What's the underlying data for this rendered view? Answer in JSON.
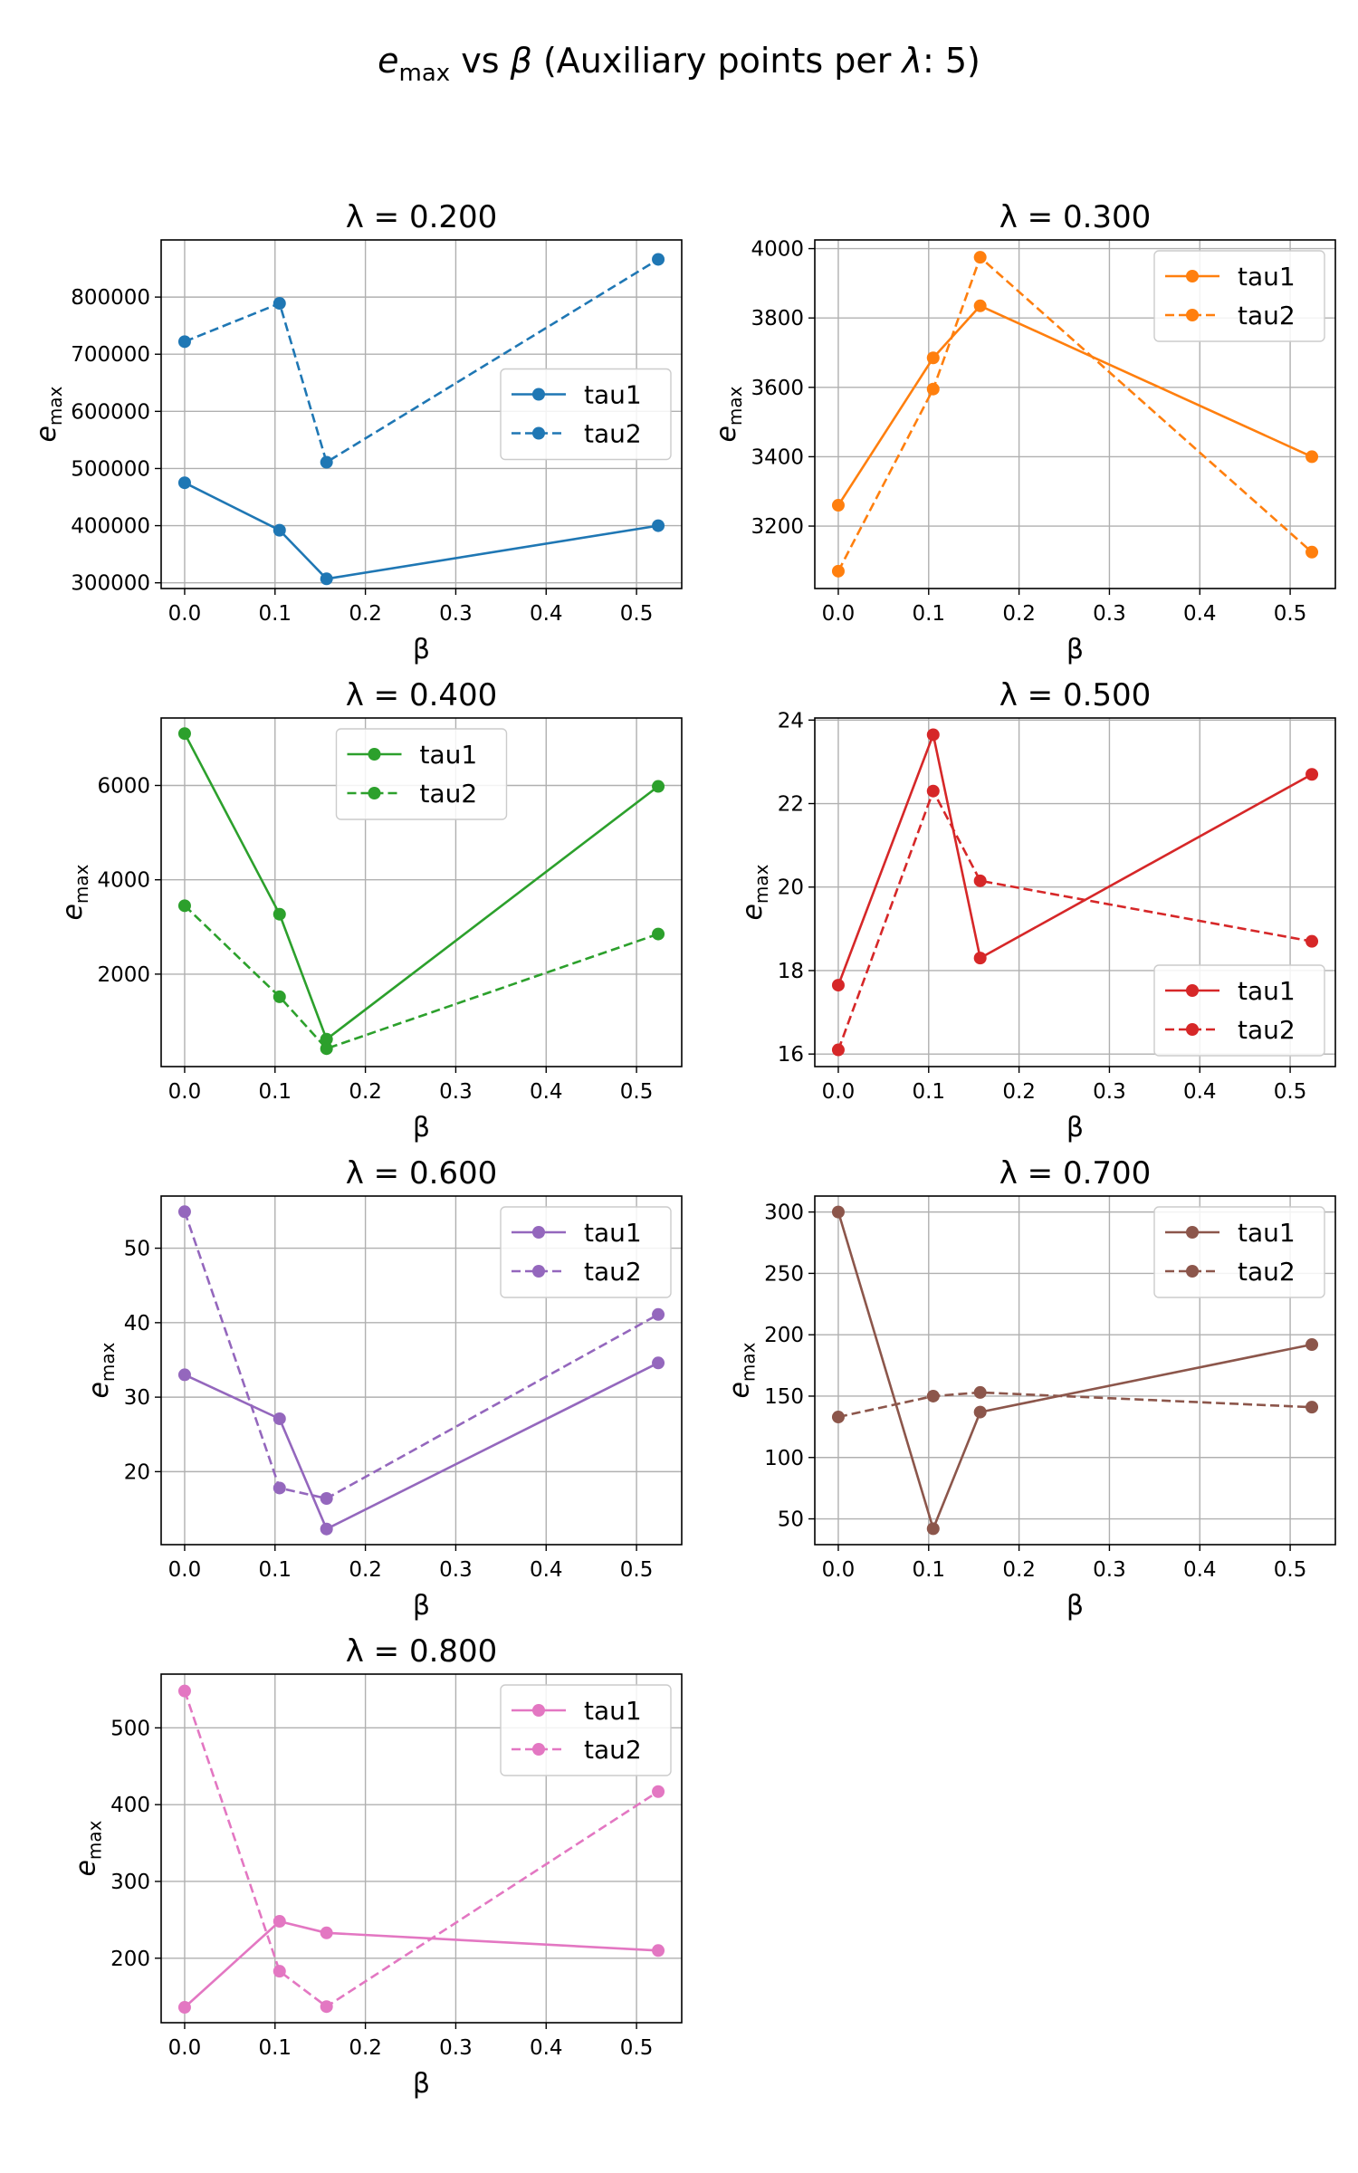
{
  "figure": {
    "suptitle_main": "e",
    "suptitle_sub": "max",
    "suptitle_vs": " vs ",
    "suptitle_beta": "β",
    "suptitle_rest1": " (Auxiliary points per ",
    "suptitle_lambda": "λ",
    "suptitle_rest2": ": 5)"
  },
  "chart_data": [
    {
      "type": "line",
      "title": "λ = 0.200",
      "xlabel": "β",
      "ylabel_main": "e",
      "ylabel_sub": "max",
      "color": "#1f77b4",
      "legend": "center-right",
      "x": [
        0.0,
        0.105,
        0.157,
        0.524
      ],
      "series": [
        {
          "name": "tau1",
          "style": "solid",
          "values": [
            475000,
            392000,
            307000,
            400000
          ]
        },
        {
          "name": "tau2",
          "style": "dashed",
          "values": [
            722000,
            789000,
            511000,
            866000
          ]
        }
      ],
      "xlim": [
        -0.026,
        0.55
      ],
      "ylim": [
        290000,
        900000
      ],
      "xticks": [
        0.0,
        0.1,
        0.2,
        0.3,
        0.4,
        0.5
      ],
      "xtick_labels": [
        "0.0",
        "0.1",
        "0.2",
        "0.3",
        "0.4",
        "0.5"
      ],
      "yticks": [
        300000,
        400000,
        500000,
        600000,
        700000,
        800000
      ],
      "ytick_labels": [
        "300000",
        "400000",
        "500000",
        "600000",
        "700000",
        "800000"
      ],
      "grid": true
    },
    {
      "type": "line",
      "title": "λ = 0.300",
      "xlabel": "β",
      "ylabel_main": "e",
      "ylabel_sub": "max",
      "color": "#ff7f0e",
      "legend": "upper-right",
      "x": [
        0.0,
        0.105,
        0.157,
        0.524
      ],
      "series": [
        {
          "name": "tau1",
          "style": "solid",
          "values": [
            3260,
            3685,
            3835,
            3400
          ]
        },
        {
          "name": "tau2",
          "style": "dashed",
          "values": [
            3070,
            3595,
            3975,
            3125
          ]
        }
      ],
      "xlim": [
        -0.026,
        0.55
      ],
      "ylim": [
        3020,
        4025
      ],
      "xticks": [
        0.0,
        0.1,
        0.2,
        0.3,
        0.4,
        0.5
      ],
      "xtick_labels": [
        "0.0",
        "0.1",
        "0.2",
        "0.3",
        "0.4",
        "0.5"
      ],
      "yticks": [
        3200,
        3400,
        3600,
        3800,
        4000
      ],
      "ytick_labels": [
        "3200",
        "3400",
        "3600",
        "3800",
        "4000"
      ],
      "grid": true
    },
    {
      "type": "line",
      "title": "λ = 0.400",
      "xlabel": "β",
      "ylabel_main": "e",
      "ylabel_sub": "max",
      "color": "#2ca02c",
      "legend": "upper-center",
      "x": [
        0.0,
        0.105,
        0.157,
        0.524
      ],
      "series": [
        {
          "name": "tau1",
          "style": "solid",
          "values": [
            7100,
            3270,
            620,
            5980
          ]
        },
        {
          "name": "tau2",
          "style": "dashed",
          "values": [
            3450,
            1520,
            420,
            2850
          ]
        }
      ],
      "xlim": [
        -0.026,
        0.55
      ],
      "ylim": [
        40,
        7430
      ],
      "xticks": [
        0.0,
        0.1,
        0.2,
        0.3,
        0.4,
        0.5
      ],
      "xtick_labels": [
        "0.0",
        "0.1",
        "0.2",
        "0.3",
        "0.4",
        "0.5"
      ],
      "yticks": [
        2000,
        4000,
        6000
      ],
      "ytick_labels": [
        "2000",
        "4000",
        "6000"
      ],
      "grid": true
    },
    {
      "type": "line",
      "title": "λ = 0.500",
      "xlabel": "β",
      "ylabel_main": "e",
      "ylabel_sub": "max",
      "color": "#d62728",
      "legend": "lower-right",
      "x": [
        0.0,
        0.105,
        0.157,
        0.524
      ],
      "series": [
        {
          "name": "tau1",
          "style": "solid",
          "values": [
            17.65,
            23.65,
            18.3,
            22.7
          ]
        },
        {
          "name": "tau2",
          "style": "dashed",
          "values": [
            16.1,
            22.3,
            20.15,
            18.7
          ]
        }
      ],
      "xlim": [
        -0.026,
        0.55
      ],
      "ylim": [
        15.7,
        24.05
      ],
      "xticks": [
        0.0,
        0.1,
        0.2,
        0.3,
        0.4,
        0.5
      ],
      "xtick_labels": [
        "0.0",
        "0.1",
        "0.2",
        "0.3",
        "0.4",
        "0.5"
      ],
      "yticks": [
        16,
        18,
        20,
        22,
        24
      ],
      "ytick_labels": [
        "16",
        "18",
        "20",
        "22",
        "24"
      ],
      "grid": true
    },
    {
      "type": "line",
      "title": "λ = 0.600",
      "xlabel": "β",
      "ylabel_main": "e",
      "ylabel_sub": "max",
      "color": "#9467bd",
      "legend": "upper-right",
      "x": [
        0.0,
        0.105,
        0.157,
        0.524
      ],
      "series": [
        {
          "name": "tau1",
          "style": "solid",
          "values": [
            33.0,
            27.1,
            12.3,
            34.6
          ]
        },
        {
          "name": "tau2",
          "style": "dashed",
          "values": [
            54.9,
            17.8,
            16.4,
            41.1
          ]
        }
      ],
      "xlim": [
        -0.026,
        0.55
      ],
      "ylim": [
        10.2,
        57.0
      ],
      "xticks": [
        0.0,
        0.1,
        0.2,
        0.3,
        0.4,
        0.5
      ],
      "xtick_labels": [
        "0.0",
        "0.1",
        "0.2",
        "0.3",
        "0.4",
        "0.5"
      ],
      "yticks": [
        20,
        30,
        40,
        50
      ],
      "ytick_labels": [
        "20",
        "30",
        "40",
        "50"
      ],
      "grid": true
    },
    {
      "type": "line",
      "title": "λ = 0.700",
      "xlabel": "β",
      "ylabel_main": "e",
      "ylabel_sub": "max",
      "color": "#8c564b",
      "legend": "upper-right",
      "x": [
        0.0,
        0.105,
        0.157,
        0.524
      ],
      "series": [
        {
          "name": "tau1",
          "style": "solid",
          "values": [
            300,
            42,
            137,
            192
          ]
        },
        {
          "name": "tau2",
          "style": "dashed",
          "values": [
            133,
            150,
            153,
            141
          ]
        }
      ],
      "xlim": [
        -0.026,
        0.55
      ],
      "ylim": [
        29,
        313
      ],
      "xticks": [
        0.0,
        0.1,
        0.2,
        0.3,
        0.4,
        0.5
      ],
      "xtick_labels": [
        "0.0",
        "0.1",
        "0.2",
        "0.3",
        "0.4",
        "0.5"
      ],
      "yticks": [
        50,
        100,
        150,
        200,
        250,
        300
      ],
      "ytick_labels": [
        "50",
        "100",
        "150",
        "200",
        "250",
        "300"
      ],
      "grid": true
    },
    {
      "type": "line",
      "title": "λ = 0.800",
      "xlabel": "β",
      "ylabel_main": "e",
      "ylabel_sub": "max",
      "color": "#e377c2",
      "legend": "upper-right",
      "x": [
        0.0,
        0.105,
        0.157,
        0.524
      ],
      "series": [
        {
          "name": "tau1",
          "style": "solid",
          "values": [
            136,
            248,
            233,
            210
          ]
        },
        {
          "name": "tau2",
          "style": "dashed",
          "values": [
            548,
            183,
            137,
            417
          ]
        }
      ],
      "xlim": [
        -0.026,
        0.55
      ],
      "ylim": [
        116,
        570
      ],
      "xticks": [
        0.0,
        0.1,
        0.2,
        0.3,
        0.4,
        0.5
      ],
      "xtick_labels": [
        "0.0",
        "0.1",
        "0.2",
        "0.3",
        "0.4",
        "0.5"
      ],
      "yticks": [
        200,
        300,
        400,
        500
      ],
      "ytick_labels": [
        "200",
        "300",
        "400",
        "500"
      ],
      "grid": true
    }
  ]
}
